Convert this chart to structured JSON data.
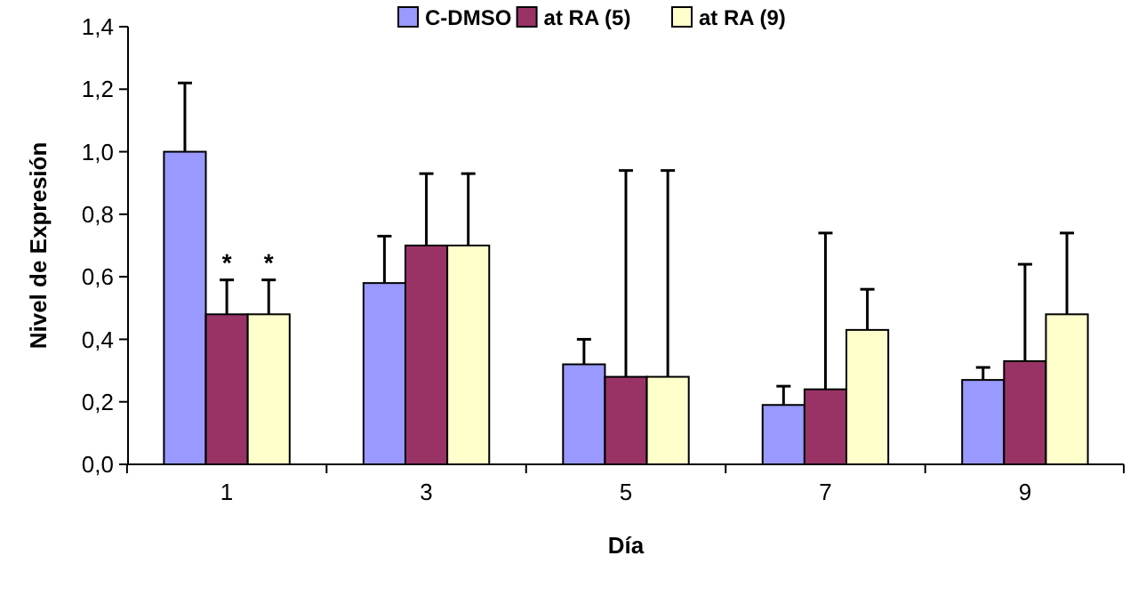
{
  "chart_data": {
    "type": "bar",
    "xlabel": "Día",
    "ylabel": "Nivel de Expresión",
    "categories": [
      "1",
      "3",
      "5",
      "7",
      "9"
    ],
    "series": [
      {
        "name": "C-DMSO",
        "color": "#9999ff",
        "values": [
          1.0,
          0.58,
          0.32,
          0.19,
          0.27
        ],
        "errors": [
          [
            1.0,
            1.22
          ],
          [
            0.58,
            0.73
          ],
          [
            0.32,
            0.4
          ],
          [
            0.19,
            0.25
          ],
          [
            0.27,
            0.31
          ]
        ]
      },
      {
        "name": "at RA (5)",
        "color": "#993366",
        "values": [
          0.48,
          0.7,
          0.28,
          0.24,
          0.33
        ],
        "errors": [
          [
            0.48,
            0.59
          ],
          [
            0.7,
            0.93
          ],
          [
            0.28,
            0.94
          ],
          [
            0.24,
            0.74
          ],
          [
            0.33,
            0.64
          ]
        ]
      },
      {
        "name": "at RA (9)",
        "color": "#ffffcc",
        "values": [
          0.48,
          0.7,
          0.28,
          0.43,
          0.48
        ],
        "errors": [
          [
            0.48,
            0.59
          ],
          [
            0.7,
            0.93
          ],
          [
            0.28,
            0.94
          ],
          [
            0.43,
            0.56
          ],
          [
            0.48,
            0.74
          ]
        ]
      }
    ],
    "ylim": [
      0,
      1.4
    ],
    "yticks": [
      {
        "value": 0,
        "label": "0,0"
      },
      {
        "value": 0.2,
        "label": "0,2"
      },
      {
        "value": 0.4,
        "label": "0,4"
      },
      {
        "value": 0.6,
        "label": "0,6"
      },
      {
        "value": 0.8,
        "label": "0,8"
      },
      {
        "value": 1.0,
        "label": "1,0"
      },
      {
        "value": 1.2,
        "label": "1,2"
      },
      {
        "value": 1.4,
        "label": "1,4"
      }
    ],
    "annotations": [
      {
        "text": "*",
        "x": "1",
        "y": 0.59
      },
      {
        "text": "*",
        "x": "1",
        "y": 0.59
      }
    ],
    "grid": false,
    "legend": "top"
  }
}
